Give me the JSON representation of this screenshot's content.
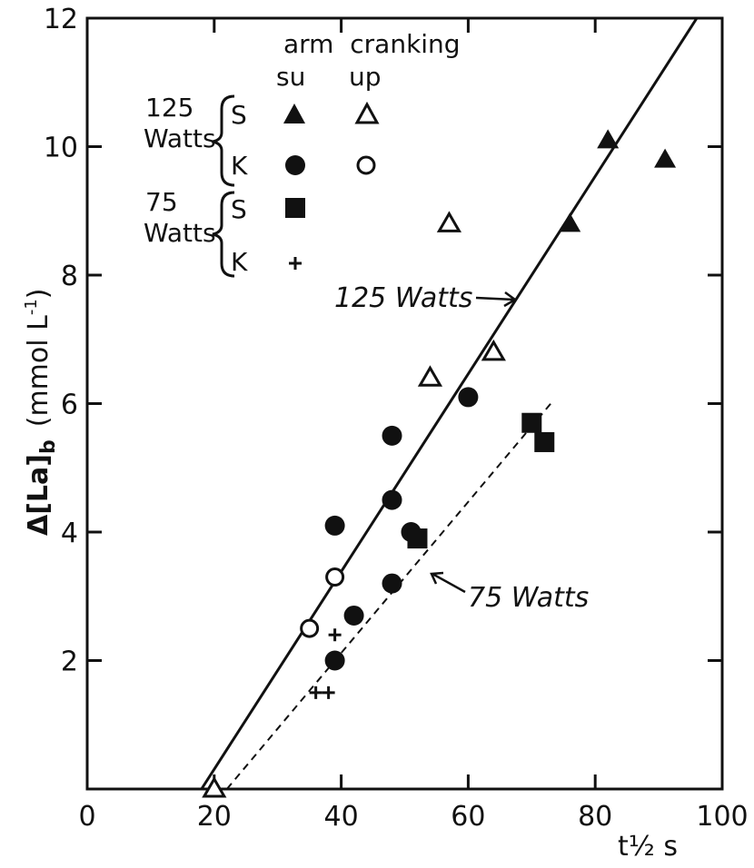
{
  "chart_data": {
    "type": "scatter",
    "title": "",
    "xlabel": "t½ s",
    "ylabel_main": "Δ[La]",
    "ylabel_sub": "b",
    "ylabel_unit": "(mmol L",
    "ylabel_exp": "-1",
    "ylabel_close": ")",
    "xlim": [
      0,
      100
    ],
    "ylim": [
      0,
      12
    ],
    "x_ticks": [
      "0",
      "20",
      "40",
      "60",
      "80",
      "100"
    ],
    "x_tick_values": [
      0,
      20,
      40,
      60,
      80,
      100
    ],
    "y_ticks": [
      "2",
      "4",
      "6",
      "8",
      "10",
      "12"
    ],
    "y_tick_values": [
      2,
      4,
      6,
      8,
      10,
      12
    ],
    "legend": {
      "header_line1": "arm  cranking",
      "col_su": "su",
      "col_up": "up",
      "group_125_line1": "125",
      "group_125_line2": "Watts",
      "group_75_line1": "75",
      "group_75_line2": "Watts",
      "row_s": "S",
      "row_k": "K"
    },
    "series": [
      {
        "name": "125 Watts S su",
        "marker": "triangle-filled",
        "points": [
          [
            76,
            8.8
          ],
          [
            82,
            10.1
          ],
          [
            91,
            9.8
          ]
        ]
      },
      {
        "name": "125 Watts S up",
        "marker": "triangle-open",
        "points": [
          [
            20,
            0.0
          ],
          [
            54,
            6.4
          ],
          [
            57,
            8.8
          ],
          [
            64,
            6.8
          ]
        ]
      },
      {
        "name": "125 Watts K su",
        "marker": "circle-filled",
        "points": [
          [
            39,
            2.0
          ],
          [
            39,
            4.1
          ],
          [
            42,
            2.7
          ],
          [
            48,
            3.2
          ],
          [
            48,
            4.5
          ],
          [
            48,
            5.5
          ],
          [
            51,
            4.0
          ],
          [
            60,
            6.1
          ]
        ]
      },
      {
        "name": "125 Watts K up",
        "marker": "circle-open",
        "points": [
          [
            35,
            2.5
          ],
          [
            39,
            3.3
          ]
        ]
      },
      {
        "name": "75 Watts S su",
        "marker": "square-filled",
        "points": [
          [
            52,
            3.9
          ],
          [
            70,
            5.7
          ],
          [
            72,
            5.4
          ]
        ]
      },
      {
        "name": "75 Watts K su",
        "marker": "plus",
        "points": [
          [
            36,
            1.5
          ],
          [
            38,
            1.5
          ],
          [
            39,
            2.4
          ]
        ]
      }
    ],
    "lines": [
      {
        "label": "125 Watts",
        "style": "solid",
        "from": [
          18,
          0
        ],
        "to": [
          96,
          12
        ]
      },
      {
        "label": "75 Watts",
        "style": "dashed",
        "from": [
          22,
          0
        ],
        "to": [
          73,
          6
        ]
      }
    ]
  }
}
